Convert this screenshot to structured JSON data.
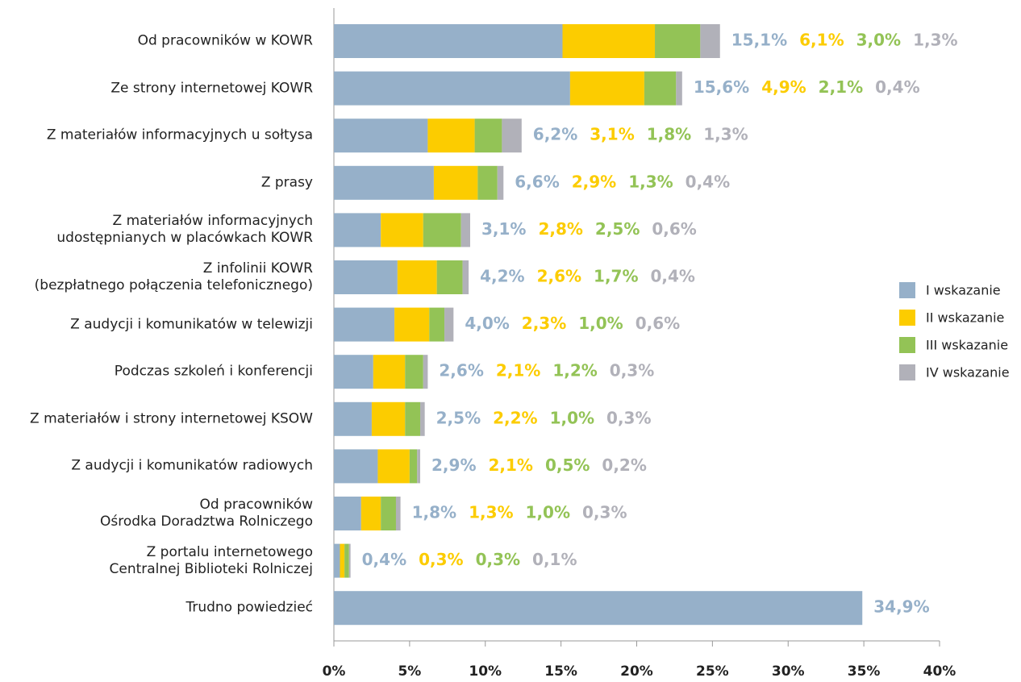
{
  "chart_data": {
    "type": "stacked-bar-horizontal",
    "categories": [
      "Od pracowników w KOWR",
      "Ze strony internetowej KOWR",
      "Z materiałów informacyjnych u sołtysa",
      "Z prasy",
      "Z materiałów informacyjnych\nudostępnianych w placówkach KOWR",
      "Z infolinii KOWR\n(bezpłatnego połączenia telefonicznego)",
      "Z audycji i komunikatów w telewizji",
      "Podczas szkoleń i konferencji",
      "Z materiałów i strony internetowej KSOW",
      "Z audycji i komunikatów radiowych",
      "Od pracowników\nOśrodka Doradztwa Rolniczego",
      "Z portalu internetowego\nCentralnej Biblioteki Rolniczej",
      "Trudno powiedzieć"
    ],
    "series": [
      {
        "name": "I wskazanie",
        "color": "#96b0c9",
        "values": [
          15.1,
          15.6,
          6.2,
          6.6,
          3.1,
          4.2,
          4.0,
          2.6,
          2.5,
          2.9,
          1.8,
          0.4,
          34.9
        ],
        "value_labels": [
          "15,1%",
          "15,6%",
          "6,2%",
          "6,6%",
          "3,1%",
          "4,2%",
          "4,0%",
          "2,6%",
          "2,5%",
          "2,9%",
          "1,8%",
          "0,4%",
          "34,9%"
        ]
      },
      {
        "name": "II wskazanie",
        "color": "#fccc00",
        "values": [
          6.1,
          4.9,
          3.1,
          2.9,
          2.8,
          2.6,
          2.3,
          2.1,
          2.2,
          2.1,
          1.3,
          0.3,
          null
        ],
        "value_labels": [
          "6,1%",
          "4,9%",
          "3,1%",
          "2,9%",
          "2,8%",
          "2,6%",
          "2,3%",
          "2,1%",
          "2,2%",
          "2,1%",
          "1,3%",
          "0,3%",
          null
        ]
      },
      {
        "name": "III wskazanie",
        "color": "#93c356",
        "values": [
          3.0,
          2.1,
          1.8,
          1.3,
          2.5,
          1.7,
          1.0,
          1.2,
          1.0,
          0.5,
          1.0,
          0.3,
          null
        ],
        "value_labels": [
          "3,0%",
          "2,1%",
          "1,8%",
          "1,3%",
          "2,5%",
          "1,7%",
          "1,0%",
          "1,2%",
          "1,0%",
          "0,5%",
          "1,0%",
          "0,3%",
          null
        ]
      },
      {
        "name": "IV wskazanie",
        "color": "#b1b1b9",
        "values": [
          1.3,
          0.4,
          1.3,
          0.4,
          0.6,
          0.4,
          0.6,
          0.3,
          0.3,
          0.2,
          0.3,
          0.1,
          null
        ],
        "value_labels": [
          "1,3%",
          "0,4%",
          "1,3%",
          "0,4%",
          "0,6%",
          "0,4%",
          "0,6%",
          "0,3%",
          "0,3%",
          "0,2%",
          "0,3%",
          "0,1%",
          null
        ]
      }
    ],
    "xlim": [
      0,
      40
    ],
    "xticks": [
      {
        "value": 0,
        "label": "0%"
      },
      {
        "value": 5,
        "label": "5%"
      },
      {
        "value": 10,
        "label": "10%"
      },
      {
        "value": 15,
        "label": "15%"
      },
      {
        "value": 20,
        "label": "20%"
      },
      {
        "value": 25,
        "label": "25%"
      },
      {
        "value": 30,
        "label": "30%"
      },
      {
        "value": 35,
        "label": "35%"
      },
      {
        "value": 40,
        "label": "40%"
      }
    ],
    "legend": "right"
  }
}
